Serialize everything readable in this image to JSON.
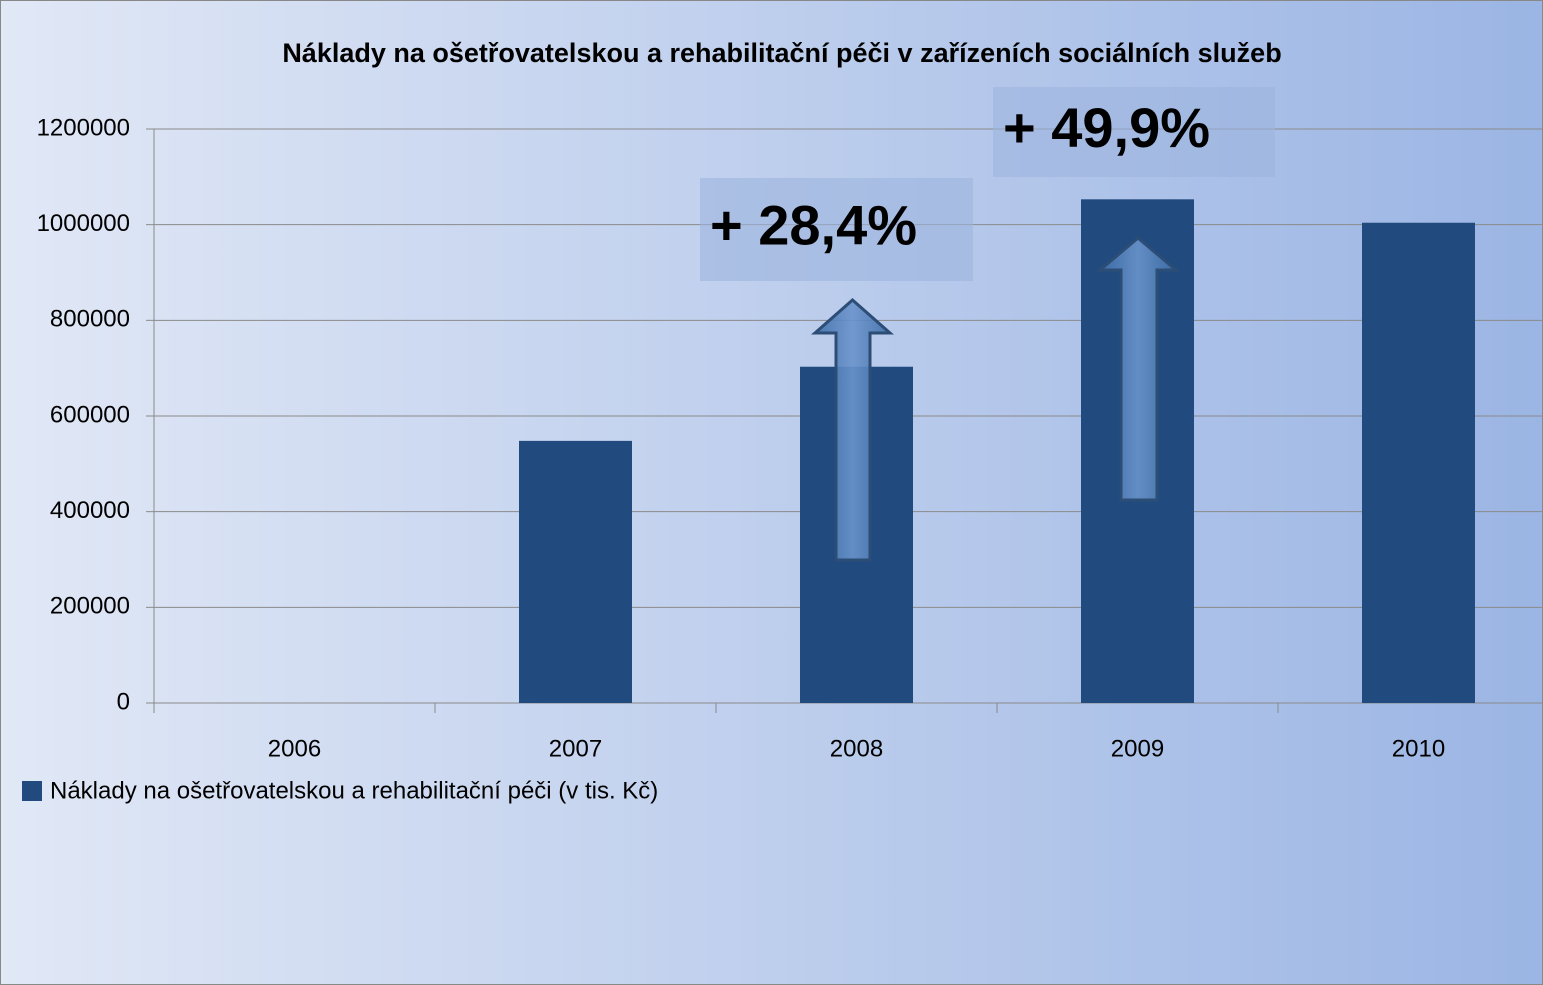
{
  "chart_data": {
    "type": "bar",
    "title": "Náklady na ošetřovatelskou a rehabilitační péči v zařízeních sociálních služeb",
    "categories": [
      "2006",
      "2007",
      "2008",
      "2009",
      "2010"
    ],
    "series": [
      {
        "name": "Náklady na ošetřovatelskou a rehabilitační péči (v tis. Kč)",
        "color": "#214a7e",
        "values": [
          null,
          548000,
          703000,
          1053000,
          1004000
        ]
      }
    ],
    "ylim": [
      0,
      1200000
    ],
    "yticks": [
      0,
      200000,
      400000,
      600000,
      800000,
      1000000,
      1200000
    ],
    "grid": true,
    "legend": "bottom-left",
    "annotations": [
      {
        "text": "+ 28,4%"
      },
      {
        "text": "+ 49,9%"
      }
    ]
  }
}
